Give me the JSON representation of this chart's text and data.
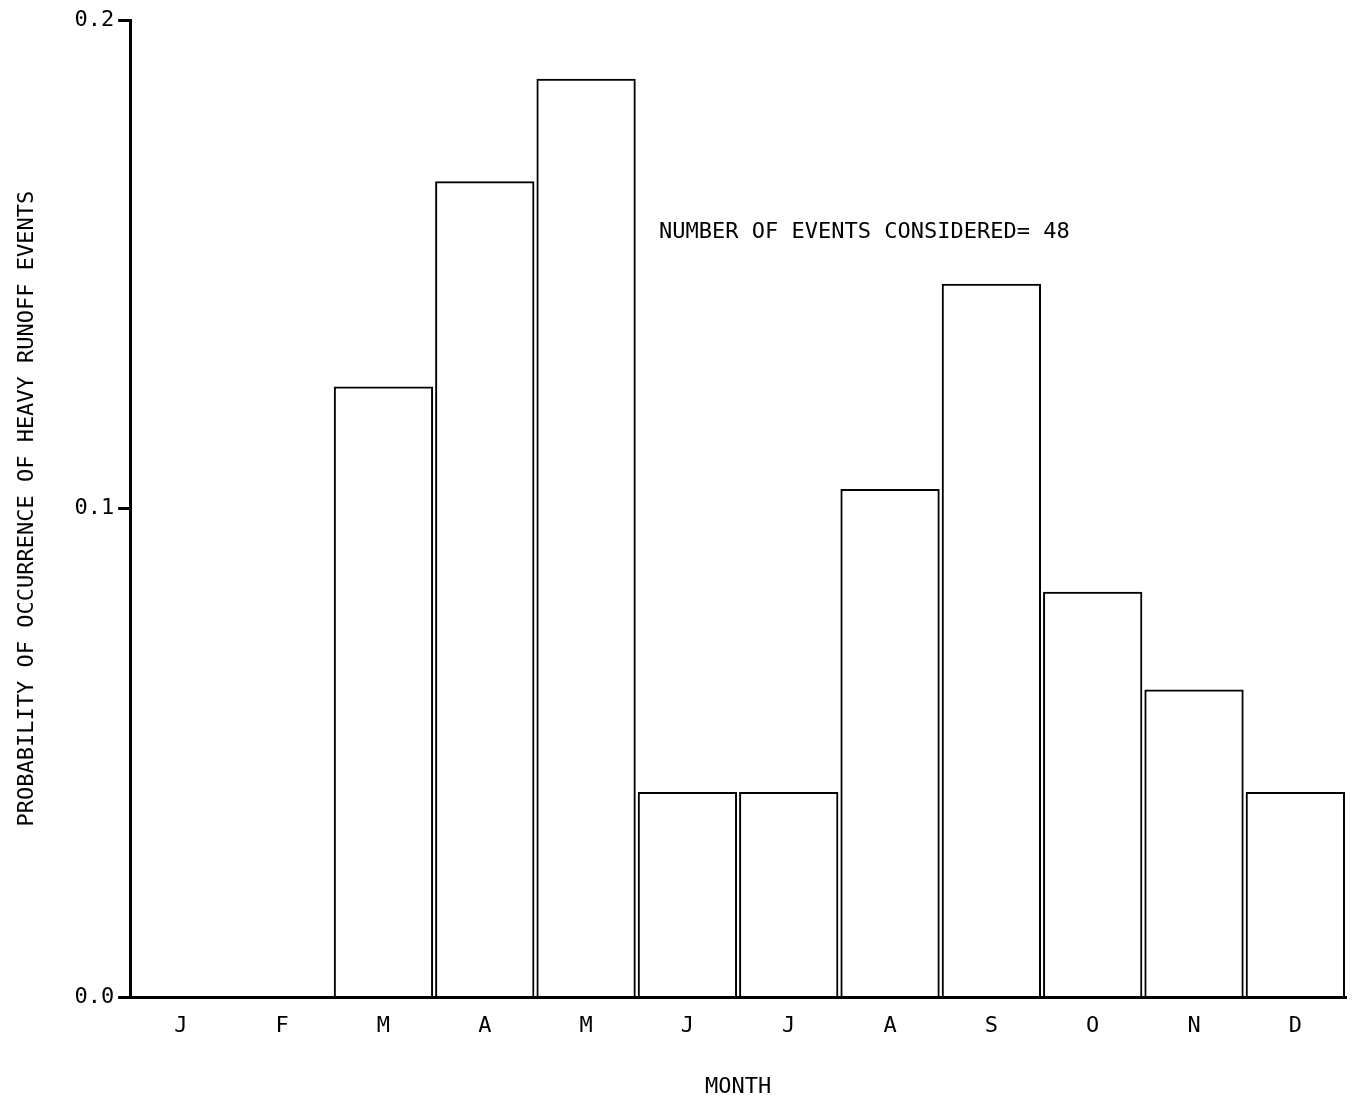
{
  "chart_data": {
    "type": "bar",
    "xlabel": "MONTH",
    "ylabel": "PROBABILITY OF OCCURRENCE OF HEAVY RUNOFF EVENTS",
    "categories": [
      "J",
      "F",
      "M",
      "A",
      "M",
      "J",
      "J",
      "A",
      "S",
      "O",
      "N",
      "D"
    ],
    "values": [
      0,
      0,
      0.125,
      0.167,
      0.188,
      0.042,
      0.042,
      0.104,
      0.146,
      0.083,
      0.063,
      0.042
    ],
    "color": "#000000",
    "ylim": [
      0,
      0.2
    ],
    "yticks": [
      {
        "value": 0,
        "label": "0.0"
      },
      {
        "value": 0.1,
        "label": "0.1"
      },
      {
        "value": 0.2,
        "label": "0.2"
      }
    ],
    "grid": false,
    "annotations": [
      "NUMBER OF EVENTS CONSIDERED= 48"
    ]
  }
}
